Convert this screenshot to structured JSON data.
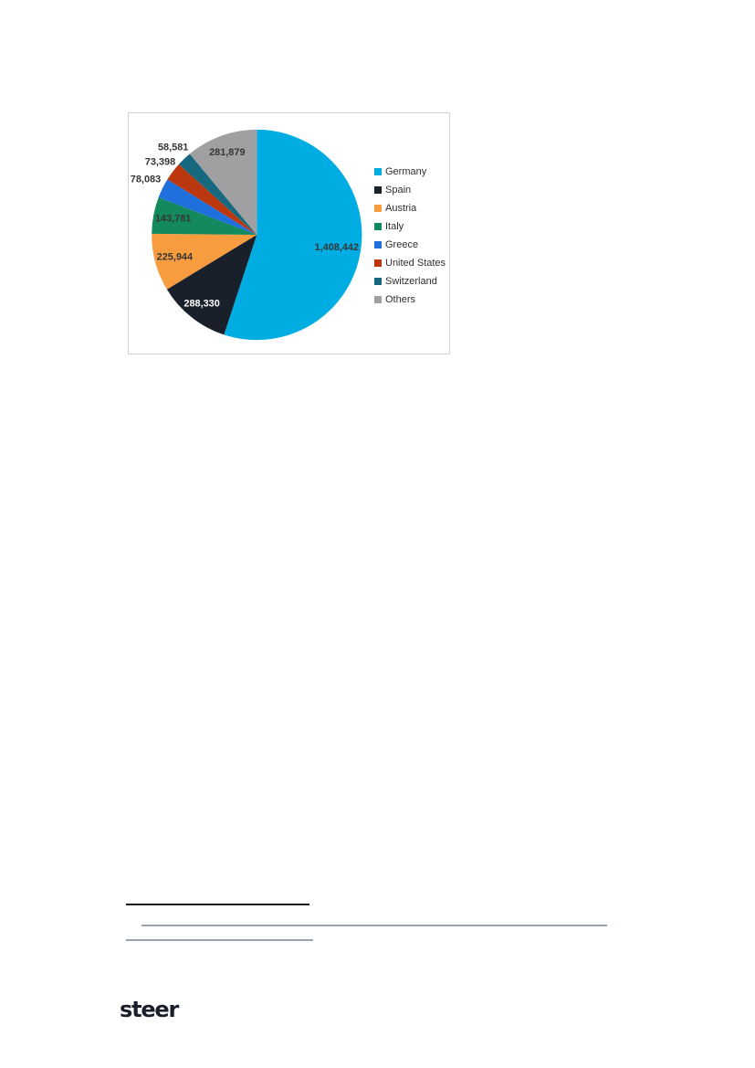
{
  "page": {
    "background": "#ffffff"
  },
  "chart_data": {
    "type": "pie",
    "title": "",
    "legend_position": "right",
    "start_angle_deg": 0,
    "direction": "clockwise",
    "total": 2558438,
    "label_font_px": 11,
    "slices": [
      {
        "label": "Germany",
        "value": 1408442,
        "display_value": "1,408,442",
        "color": "#00ADE2",
        "label_color": "#363636",
        "label_placement": "inside",
        "label_r": 0.77
      },
      {
        "label": "Spain",
        "value": 288330,
        "display_value": "288,330",
        "color": "#191F2B",
        "label_color": "#ffffff",
        "label_placement": "inside",
        "label_r": 0.84
      },
      {
        "label": "Austria",
        "value": 225944,
        "display_value": "225,944",
        "color": "#F89C40",
        "label_color": "#363636",
        "label_placement": "inside",
        "label_r": 0.81
      },
      {
        "label": "Italy",
        "value": 143781,
        "display_value": "143,781",
        "color": "#128A5E",
        "label_color": "#363636",
        "label_placement": "inside",
        "label_r": 0.81
      },
      {
        "label": "Greece",
        "value": 78083,
        "display_value": "78,083",
        "color": "#1F70DC",
        "label_color": "#363636",
        "label_placement": "outside",
        "label_r": 1.18
      },
      {
        "label": "United States",
        "value": 73398,
        "display_value": "73,398",
        "color": "#BB380F",
        "label_color": "#363636",
        "label_placement": "outside",
        "label_r": 1.15
      },
      {
        "label": "Switzerland",
        "value": 58581,
        "display_value": "58,581",
        "color": "#17687E",
        "label_color": "#363636",
        "label_placement": "outside",
        "label_r": 1.15
      },
      {
        "label": "Others",
        "value": 281879,
        "display_value": "281,879",
        "color": "#A0A0A3",
        "label_color": "#363636",
        "label_placement": "inside",
        "label_r": 0.83
      }
    ]
  },
  "footer": {
    "logo_text": "steer",
    "logo_color": "#1a202b"
  }
}
